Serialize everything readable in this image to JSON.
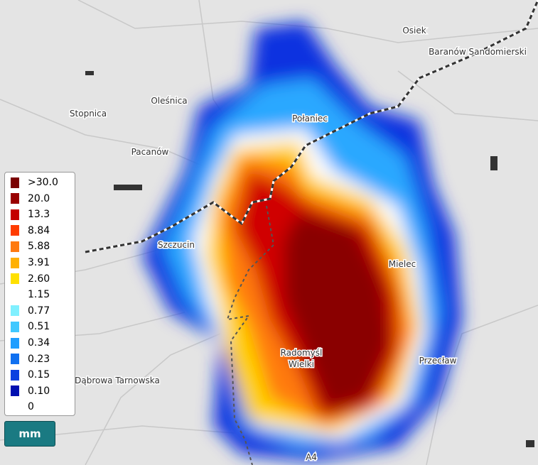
{
  "places": [
    {
      "label": "Osiek"
    },
    {
      "label": "Baranów Sandomierski"
    },
    {
      "label": "Stopnica"
    },
    {
      "label": "Oleśnica"
    },
    {
      "label": "Połaniec"
    },
    {
      "label": "Pacanów"
    },
    {
      "label": "Szczucin"
    },
    {
      "label": "Mielec"
    },
    {
      "label": "Radomyśl"
    },
    {
      "label": "Wielki"
    },
    {
      "label": "Przecław"
    },
    {
      "label": "Dąbrowa Tarnowska"
    },
    {
      "label": "A4"
    }
  ],
  "legend": {
    "entries": [
      {
        "label": ">30.0",
        "color": "#7a0000"
      },
      {
        "label": "20.0",
        "color": "#990000"
      },
      {
        "label": "13.3",
        "color": "#c40000"
      },
      {
        "label": "8.84",
        "color": "#ff3c00"
      },
      {
        "label": "5.88",
        "color": "#ff7a10"
      },
      {
        "label": "3.91",
        "color": "#ffb000"
      },
      {
        "label": "2.60",
        "color": "#ffe000"
      },
      {
        "label": "1.15",
        "color": "#ffffff"
      },
      {
        "label": "0.77",
        "color": "#80f0ff"
      },
      {
        "label": "0.51",
        "color": "#40c8ff"
      },
      {
        "label": "0.34",
        "color": "#1e9eff"
      },
      {
        "label": "0.23",
        "color": "#1070f0"
      },
      {
        "label": "0.15",
        "color": "#0a40e0"
      },
      {
        "label": "0.10",
        "color": "#0010b0"
      },
      {
        "label": "0",
        "color": "#ffffff"
      }
    ]
  },
  "unit_button": {
    "label": "mm"
  }
}
